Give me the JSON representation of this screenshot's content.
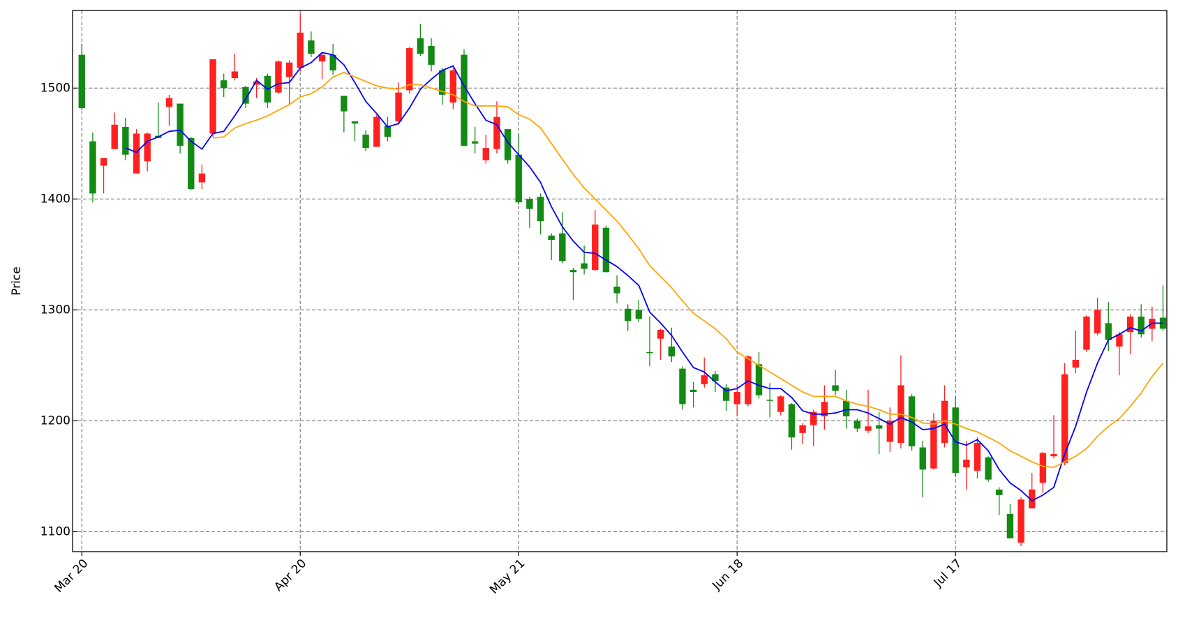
{
  "chart_data": {
    "type": "candlestick",
    "ylabel": "Price",
    "categories": [
      "Mar 20",
      null,
      null,
      null,
      null,
      null,
      null,
      null,
      null,
      null,
      null,
      null,
      null,
      null,
      null,
      null,
      null,
      null,
      null,
      null,
      "Apr 20",
      null,
      null,
      null,
      null,
      null,
      null,
      null,
      null,
      null,
      null,
      null,
      null,
      null,
      null,
      null,
      null,
      null,
      null,
      null,
      "May 21",
      null,
      null,
      null,
      null,
      null,
      null,
      null,
      null,
      null,
      null,
      null,
      null,
      null,
      null,
      null,
      null,
      null,
      null,
      null,
      "Jun 18",
      null,
      null,
      null,
      null,
      null,
      null,
      null,
      null,
      null,
      null,
      null,
      null,
      null,
      null,
      null,
      null,
      null,
      null,
      null,
      "Jul 17",
      null,
      null,
      null,
      null,
      null,
      null,
      null,
      null,
      null,
      null,
      null,
      null,
      null,
      null,
      null,
      null,
      null,
      null,
      null
    ],
    "open": [
      1530,
      1452,
      1430,
      1445,
      1465,
      1423,
      1434,
      1457,
      1483,
      1486,
      1455,
      1415,
      1459,
      1507,
      1509,
      1501,
      1503,
      1511,
      1496,
      1510,
      1518,
      1543,
      1524,
      1530,
      1493,
      1470,
      1458,
      1447,
      1466,
      1470,
      1498,
      1545,
      1538,
      1516,
      1487,
      1530,
      1452,
      1435,
      1445,
      1463,
      1440,
      1400,
      1402,
      1367,
      1369,
      1336,
      1342,
      1336,
      1374,
      1321,
      1301,
      1300,
      1262,
      1274,
      1267,
      1247,
      1228,
      1233,
      1242,
      1230,
      1215,
      1215,
      1251,
      1219,
      1208,
      1215,
      1189,
      1196,
      1204,
      1232,
      1218,
      1200,
      1191,
      1196,
      1181,
      1180,
      1222,
      1176,
      1157,
      1180,
      1212,
      1158,
      1155,
      1167,
      1138,
      1116,
      1090,
      1121,
      1144,
      1168,
      1162,
      1248,
      1264,
      1279,
      1288,
      1267,
      1280,
      1294,
      1283,
      1293
    ],
    "high": [
      1540,
      1460,
      1437,
      1478,
      1473,
      1463,
      1460,
      1487,
      1494,
      1486,
      1456,
      1431,
      1526,
      1513,
      1531,
      1502,
      1509,
      1513,
      1525,
      1525,
      1567,
      1551,
      1532,
      1540,
      1493,
      1470,
      1462,
      1476,
      1474,
      1505,
      1537,
      1558,
      1545,
      1518,
      1518,
      1535,
      1465,
      1458,
      1488,
      1463,
      1459,
      1402,
      1405,
      1369,
      1388,
      1338,
      1358,
      1390,
      1376,
      1331,
      1305,
      1309,
      1294,
      1283,
      1284,
      1249,
      1235,
      1257,
      1245,
      1233,
      1232,
      1259,
      1262,
      1234,
      1223,
      1216,
      1198,
      1210,
      1232,
      1246,
      1228,
      1202,
      1228,
      1208,
      1212,
      1259,
      1224,
      1182,
      1207,
      1232,
      1222,
      1182,
      1185,
      1168,
      1140,
      1125,
      1131,
      1153,
      1172,
      1205,
      1252,
      1281,
      1295,
      1311,
      1307,
      1280,
      1296,
      1305,
      1303,
      1322
    ],
    "low": [
      1480,
      1397,
      1405,
      1445,
      1435,
      1423,
      1425,
      1455,
      1466,
      1441,
      1408,
      1409,
      1456,
      1492,
      1507,
      1482,
      1491,
      1482,
      1495,
      1485,
      1515,
      1528,
      1508,
      1512,
      1460,
      1452,
      1443,
      1447,
      1452,
      1467,
      1495,
      1529,
      1515,
      1485,
      1481,
      1448,
      1441,
      1432,
      1441,
      1432,
      1395,
      1374,
      1368,
      1345,
      1342,
      1309,
      1332,
      1335,
      1334,
      1306,
      1281,
      1289,
      1249,
      1255,
      1253,
      1210,
      1212,
      1230,
      1226,
      1209,
      1204,
      1213,
      1220,
      1203,
      1205,
      1174,
      1179,
      1177,
      1192,
      1223,
      1193,
      1190,
      1189,
      1170,
      1172,
      1175,
      1173,
      1131,
      1156,
      1176,
      1150,
      1138,
      1148,
      1145,
      1115,
      1094,
      1087,
      1121,
      1135,
      1166,
      1160,
      1243,
      1262,
      1277,
      1263,
      1241,
      1260,
      1275,
      1272,
      1281
    ],
    "close": [
      1482,
      1405,
      1437,
      1467,
      1440,
      1459,
      1459,
      1455,
      1491,
      1448,
      1409,
      1423,
      1526,
      1500,
      1515,
      1486,
      1506,
      1487,
      1524,
      1523,
      1550,
      1531,
      1530,
      1516,
      1479,
      1468,
      1446,
      1474,
      1456,
      1496,
      1536,
      1531,
      1521,
      1494,
      1516,
      1448,
      1450,
      1446,
      1474,
      1435,
      1397,
      1391,
      1380,
      1363,
      1344,
      1334,
      1337,
      1377,
      1334,
      1315,
      1290,
      1292,
      1261,
      1282,
      1258,
      1215,
      1226,
      1241,
      1236,
      1218,
      1226,
      1258,
      1223,
      1218,
      1222,
      1185,
      1196,
      1208,
      1217,
      1227,
      1204,
      1193,
      1195,
      1193,
      1200,
      1232,
      1177,
      1156,
      1200,
      1218,
      1153,
      1165,
      1180,
      1147,
      1133,
      1094,
      1129,
      1138,
      1171,
      1170,
      1242,
      1255,
      1294,
      1300,
      1273,
      1278,
      1294,
      1278,
      1292,
      1283
    ],
    "up_color": "#ff2020",
    "down_color": "#138a13",
    "series": [
      {
        "color": "#0000ff",
        "values": [
          null,
          null,
          null,
          null,
          1446,
          1442,
          1452,
          1456,
          1461,
          1462,
          1452,
          1445,
          1459,
          1461,
          1475,
          1490,
          1507,
          1499,
          1504,
          1505,
          1518,
          1523,
          1532,
          1530,
          1521,
          1505,
          1488,
          1477,
          1465,
          1468,
          1482,
          1499,
          1508,
          1516,
          1520,
          1502,
          1486,
          1471,
          1467,
          1451,
          1440,
          1429,
          1415,
          1393,
          1375,
          1362,
          1352,
          1351,
          1345,
          1339,
          1331,
          1322,
          1298,
          1288,
          1277,
          1262,
          1248,
          1244,
          1235,
          1227,
          1229,
          1236,
          1232,
          1229,
          1229,
          1221,
          1209,
          1206,
          1206,
          1207,
          1210,
          1210,
          1207,
          1202,
          1197,
          1203,
          1199,
          1192,
          1193,
          1197,
          1181,
          1178,
          1183,
          1173,
          1156,
          1144,
          1137,
          1128,
          1133,
          1140,
          1170,
          1195,
          1226,
          1252,
          1273,
          1278,
          1284,
          1281,
          1288,
          1288
        ]
      },
      {
        "color": "#ffa500",
        "values": [
          null,
          null,
          null,
          null,
          null,
          null,
          null,
          null,
          null,
          null,
          null,
          null,
          1455,
          1456,
          1464,
          1468,
          1471,
          1475,
          1480,
          1485,
          1492,
          1495,
          1501,
          1510,
          1514,
          1510,
          1506,
          1502,
          1500,
          1499,
          1503,
          1503,
          1500,
          1497,
          1494,
          1488,
          1484,
          1484,
          1484,
          1483,
          1476,
          1472,
          1464,
          1450,
          1436,
          1422,
          1410,
          1400,
          1390,
          1380,
          1368,
          1355,
          1340,
          1330,
          1320,
          1308,
          1297,
          1290,
          1283,
          1274,
          1262,
          1256,
          1250,
          1244,
          1238,
          1232,
          1226,
          1222,
          1222,
          1222,
          1218,
          1215,
          1213,
          1210,
          1206,
          1206,
          1203,
          1198,
          1197,
          1200,
          1197,
          1193,
          1190,
          1185,
          1180,
          1173,
          1168,
          1163,
          1159,
          1158,
          1163,
          1168,
          1175,
          1186,
          1195,
          1202,
          1213,
          1225,
          1240,
          1252
        ]
      }
    ],
    "ylim": [
      1082,
      1570
    ],
    "yticks": [
      1100,
      1200,
      1300,
      1400,
      1500
    ],
    "grid": true
  }
}
